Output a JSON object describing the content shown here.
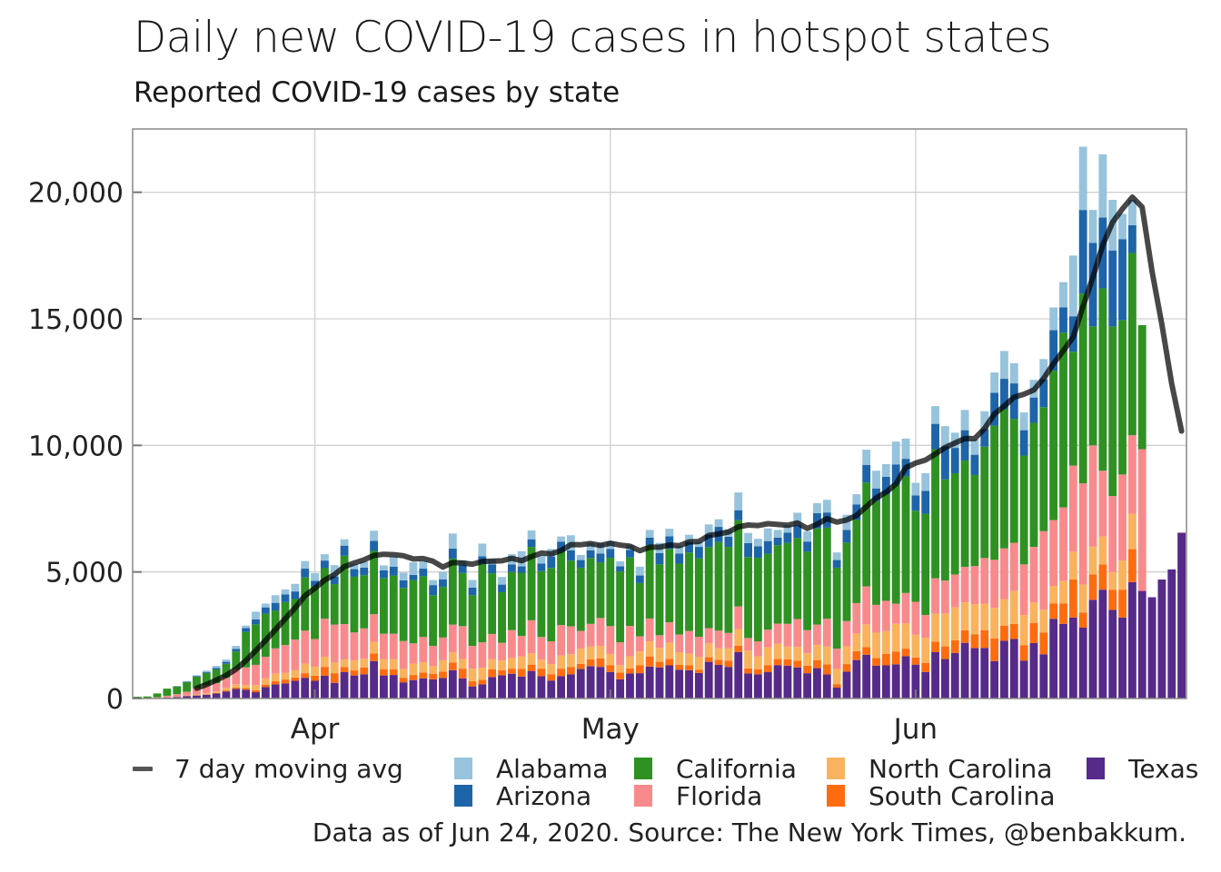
{
  "chart_data": {
    "type": "bar",
    "stacked": true,
    "title": "Daily new COVID-19 cases in hotspot states",
    "subtitle": "Reported COVID-19 cases by state",
    "xlabel": "",
    "ylabel": "",
    "ylim": [
      0,
      22500
    ],
    "yticks": [
      0,
      5000,
      10000,
      15000,
      20000
    ],
    "ytick_labels": [
      "0",
      "5,000",
      "10,000",
      "15,000",
      "20,000"
    ],
    "xticks": [
      {
        "label": "Apr",
        "date": "2020-04-01"
      },
      {
        "label": "May",
        "date": "2020-05-01"
      },
      {
        "label": "Jun",
        "date": "2020-06-01"
      }
    ],
    "x_start": "2020-03-14",
    "x_end": "2020-06-23",
    "grid": true,
    "legend_position": "bottom",
    "footer": "Data as of Jun 24, 2020. Source: The New York Times, @benbakkum.",
    "moving_avg_label": "7 day moving avg",
    "moving_avg_color": "#000000",
    "series": [
      {
        "name": "Texas",
        "color": "#562a89",
        "values": [
          10,
          10,
          20,
          40,
          60,
          90,
          120,
          150,
          200,
          280,
          380,
          350,
          250,
          450,
          560,
          600,
          700,
          820,
          700,
          900,
          620,
          1040,
          910,
          960,
          1480,
          910,
          930,
          640,
          730,
          800,
          760,
          810,
          1120,
          800,
          480,
          560,
          850,
          920,
          980,
          870,
          1090,
          880,
          710,
          880,
          960,
          1170,
          1280,
          1250,
          1050,
          760,
          990,
          1000,
          1260,
          1230,
          1310,
          1140,
          1120,
          1010,
          1450,
          1330,
          1250,
          1840,
          990,
          960,
          1040,
          1320,
          1300,
          1230,
          1000,
          1200,
          950,
          430,
          1060,
          1520,
          1730,
          1300,
          1310,
          1350,
          1670,
          1340,
          1050,
          1830,
          1560,
          1800,
          2200,
          1990,
          2000,
          1480,
          2280,
          2350,
          1500,
          2190,
          1750,
          3150,
          2950,
          3200,
          2800,
          3900,
          4300,
          3500,
          3200,
          4600,
          4250,
          4000,
          4700,
          5100,
          6550
        ]
      },
      {
        "name": "South Carolina",
        "color": "#ff6c0f",
        "values": [
          0,
          0,
          0,
          5,
          5,
          10,
          10,
          20,
          20,
          40,
          60,
          60,
          80,
          100,
          120,
          150,
          130,
          180,
          200,
          350,
          380,
          200,
          200,
          260,
          300,
          250,
          230,
          180,
          200,
          230,
          220,
          250,
          300,
          380,
          200,
          180,
          300,
          200,
          200,
          300,
          250,
          300,
          250,
          300,
          290,
          200,
          270,
          330,
          260,
          260,
          200,
          310,
          400,
          220,
          250,
          190,
          200,
          130,
          180,
          200,
          240,
          250,
          200,
          200,
          280,
          240,
          250,
          260,
          300,
          320,
          400,
          140,
          300,
          350,
          300,
          300,
          450,
          500,
          300,
          280,
          350,
          420,
          500,
          500,
          500,
          540,
          700,
          900,
          600,
          600,
          600,
          800,
          860,
          600,
          800,
          1500,
          600,
          1000,
          1000,
          800,
          1100,
          1300
        ]
      },
      {
        "name": "North Carolina",
        "color": "#f9b35e",
        "values": [
          0,
          0,
          0,
          5,
          10,
          20,
          30,
          40,
          60,
          100,
          120,
          120,
          200,
          250,
          300,
          260,
          300,
          380,
          350,
          400,
          420,
          300,
          400,
          350,
          450,
          400,
          400,
          350,
          450,
          400,
          300,
          450,
          400,
          380,
          500,
          480,
          400,
          380,
          420,
          500,
          450,
          350,
          400,
          520,
          500,
          600,
          500,
          500,
          450,
          300,
          480,
          550,
          600,
          550,
          650,
          500,
          450,
          500,
          550,
          450,
          500,
          650,
          700,
          500,
          700,
          600,
          500,
          550,
          500,
          600,
          700,
          600,
          700,
          700,
          900,
          1000,
          900,
          1100,
          1000,
          900,
          1000,
          1100,
          1300,
          1300,
          1100,
          1200,
          1050,
          1200,
          1050,
          1300,
          1200,
          800,
          900,
          700,
          900,
          1100,
          1100,
          1100,
          1100,
          700,
          1150,
          1400
        ]
      },
      {
        "name": "Florida",
        "color": "#f98a8c",
        "values": [
          10,
          10,
          30,
          60,
          100,
          150,
          250,
          300,
          330,
          400,
          600,
          700,
          800,
          850,
          1000,
          1100,
          1200,
          1300,
          1100,
          1500,
          1500,
          1400,
          1100,
          1200,
          1100,
          1000,
          1000,
          1100,
          800,
          1000,
          800,
          900,
          1100,
          1300,
          900,
          1000,
          1000,
          700,
          1100,
          800,
          1300,
          900,
          900,
          1200,
          1100,
          700,
          900,
          1100,
          1100,
          900,
          1200,
          600,
          900,
          500,
          800,
          700,
          900,
          800,
          600,
          700,
          600,
          900,
          500,
          600,
          700,
          800,
          900,
          1100,
          900,
          800,
          1100,
          800,
          1000,
          1200,
          1500,
          1100,
          1200,
          800,
          1200,
          1300,
          900,
          1400,
          1300,
          1300,
          1400,
          1500,
          1800,
          1900,
          2000,
          1900,
          2000,
          2200,
          3100,
          2600,
          2900,
          3400,
          4000,
          4000,
          2600,
          3000,
          3400,
          3100,
          5600
        ]
      },
      {
        "name": "California",
        "color": "#2e9122",
        "values": [
          50,
          60,
          150,
          280,
          300,
          380,
          450,
          500,
          540,
          550,
          700,
          1400,
          1600,
          1700,
          1500,
          1700,
          1600,
          2100,
          2100,
          2000,
          1600,
          2700,
          2200,
          2100,
          2500,
          2200,
          2300,
          2100,
          2500,
          2400,
          2000,
          2000,
          2600,
          2100,
          2000,
          3100,
          2400,
          2000,
          2300,
          2500,
          2900,
          2600,
          2900,
          2900,
          2600,
          2500,
          2600,
          2200,
          2700,
          2800,
          2700,
          2100,
          2900,
          2800,
          2900,
          2800,
          3100,
          3100,
          3200,
          3500,
          3400,
          3400,
          3200,
          3300,
          3000,
          3100,
          3200,
          3200,
          3100,
          3800,
          3600,
          3200,
          3100,
          3300,
          4100,
          4100,
          4200,
          4700,
          4600,
          3600,
          4000,
          5100,
          4000,
          4000,
          4200,
          3600,
          4400,
          5300,
          5500,
          4900,
          4300,
          4900,
          4900,
          5900,
          6900,
          4500,
          7500,
          4700,
          7200,
          6700,
          6100,
          7200,
          4900
        ]
      },
      {
        "name": "Arizona",
        "color": "#1e64a8",
        "values": [
          0,
          0,
          0,
          0,
          10,
          20,
          30,
          40,
          60,
          80,
          100,
          150,
          200,
          250,
          300,
          300,
          300,
          350,
          200,
          300,
          300,
          400,
          300,
          300,
          400,
          300,
          350,
          300,
          200,
          300,
          400,
          300,
          400,
          300,
          300,
          300,
          350,
          300,
          300,
          250,
          300,
          300,
          450,
          400,
          400,
          300,
          300,
          350,
          350,
          200,
          300,
          300,
          300,
          450,
          500,
          400,
          400,
          450,
          500,
          600,
          400,
          400,
          550,
          450,
          500,
          300,
          400,
          500,
          400,
          600,
          600,
          300,
          500,
          600,
          700,
          500,
          700,
          800,
          700,
          600,
          900,
          1000,
          1300,
          1000,
          1200,
          800,
          700,
          1300,
          1200,
          1400,
          1000,
          1000,
          1100,
          1600,
          1000,
          1400,
          3300,
          3300,
          2800,
          3000,
          3200,
          1100
        ]
      },
      {
        "name": "Alabama",
        "color": "#97c3dc",
        "values": [
          0,
          0,
          0,
          0,
          10,
          20,
          30,
          50,
          80,
          90,
          120,
          100,
          300,
          150,
          300,
          200,
          300,
          300,
          300,
          250,
          450,
          250,
          200,
          250,
          400,
          200,
          400,
          300,
          500,
          300,
          200,
          300,
          600,
          200,
          300,
          500,
          200,
          300,
          400,
          600,
          350,
          300,
          300,
          200,
          600,
          200,
          300,
          400,
          300,
          200,
          200,
          350,
          300,
          400,
          300,
          300,
          300,
          200,
          400,
          300,
          300,
          700,
          400,
          300,
          500,
          300,
          300,
          500,
          400,
          400,
          500,
          300,
          600,
          400,
          600,
          700,
          500,
          900,
          800,
          500,
          700,
          700,
          800,
          600,
          800,
          600,
          700,
          800,
          1100,
          800,
          700,
          700,
          800,
          900,
          1000,
          2400,
          2500,
          1300,
          2500,
          2000,
          1000,
          1000
        ]
      }
    ]
  }
}
